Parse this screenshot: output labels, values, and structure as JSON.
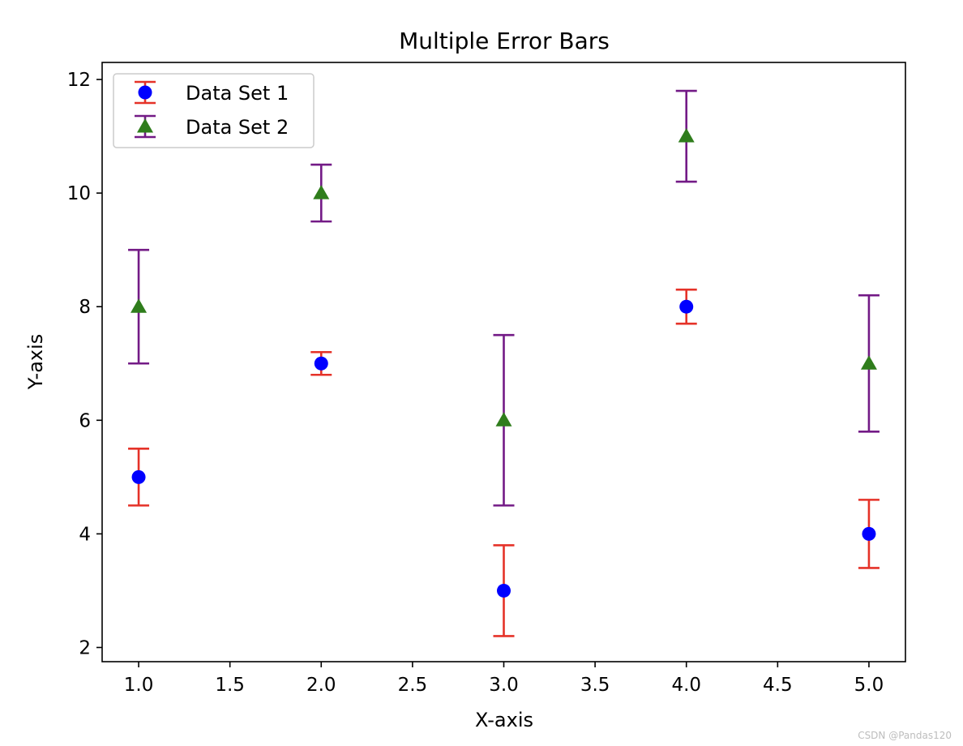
{
  "chart_data": {
    "type": "scatter",
    "title": "Multiple Error Bars",
    "xlabel": "X-axis",
    "ylabel": "Y-axis",
    "xlim": [
      0.8,
      5.2
    ],
    "ylim": [
      1.75,
      12.3
    ],
    "x_ticks": [
      1.0,
      1.5,
      2.0,
      2.5,
      3.0,
      3.5,
      4.0,
      4.5,
      5.0
    ],
    "x_tick_labels": [
      "1.0",
      "1.5",
      "2.0",
      "2.5",
      "3.0",
      "3.5",
      "4.0",
      "4.5",
      "5.0"
    ],
    "y_ticks": [
      2,
      4,
      6,
      8,
      10,
      12
    ],
    "y_tick_labels": [
      "2",
      "4",
      "6",
      "8",
      "10",
      "12"
    ],
    "grid": false,
    "legend_position": "top-left",
    "series": [
      {
        "name": "Data Set 1",
        "marker": "circle",
        "marker_color": "#0000ff",
        "errorbar_color": "#e53228",
        "x": [
          1,
          2,
          3,
          4,
          5
        ],
        "y": [
          5,
          7,
          3,
          8,
          4
        ],
        "yerr": [
          0.5,
          0.2,
          0.8,
          0.3,
          0.6
        ]
      },
      {
        "name": "Data Set 2",
        "marker": "triangle",
        "marker_color": "#2f7d1c",
        "errorbar_color": "#731a86",
        "x": [
          1,
          2,
          3,
          4,
          5
        ],
        "y": [
          8,
          10,
          6,
          11,
          7
        ],
        "yerr": [
          1.0,
          0.5,
          1.5,
          0.8,
          1.2
        ]
      }
    ]
  },
  "watermark": "CSDN @Pandas120"
}
